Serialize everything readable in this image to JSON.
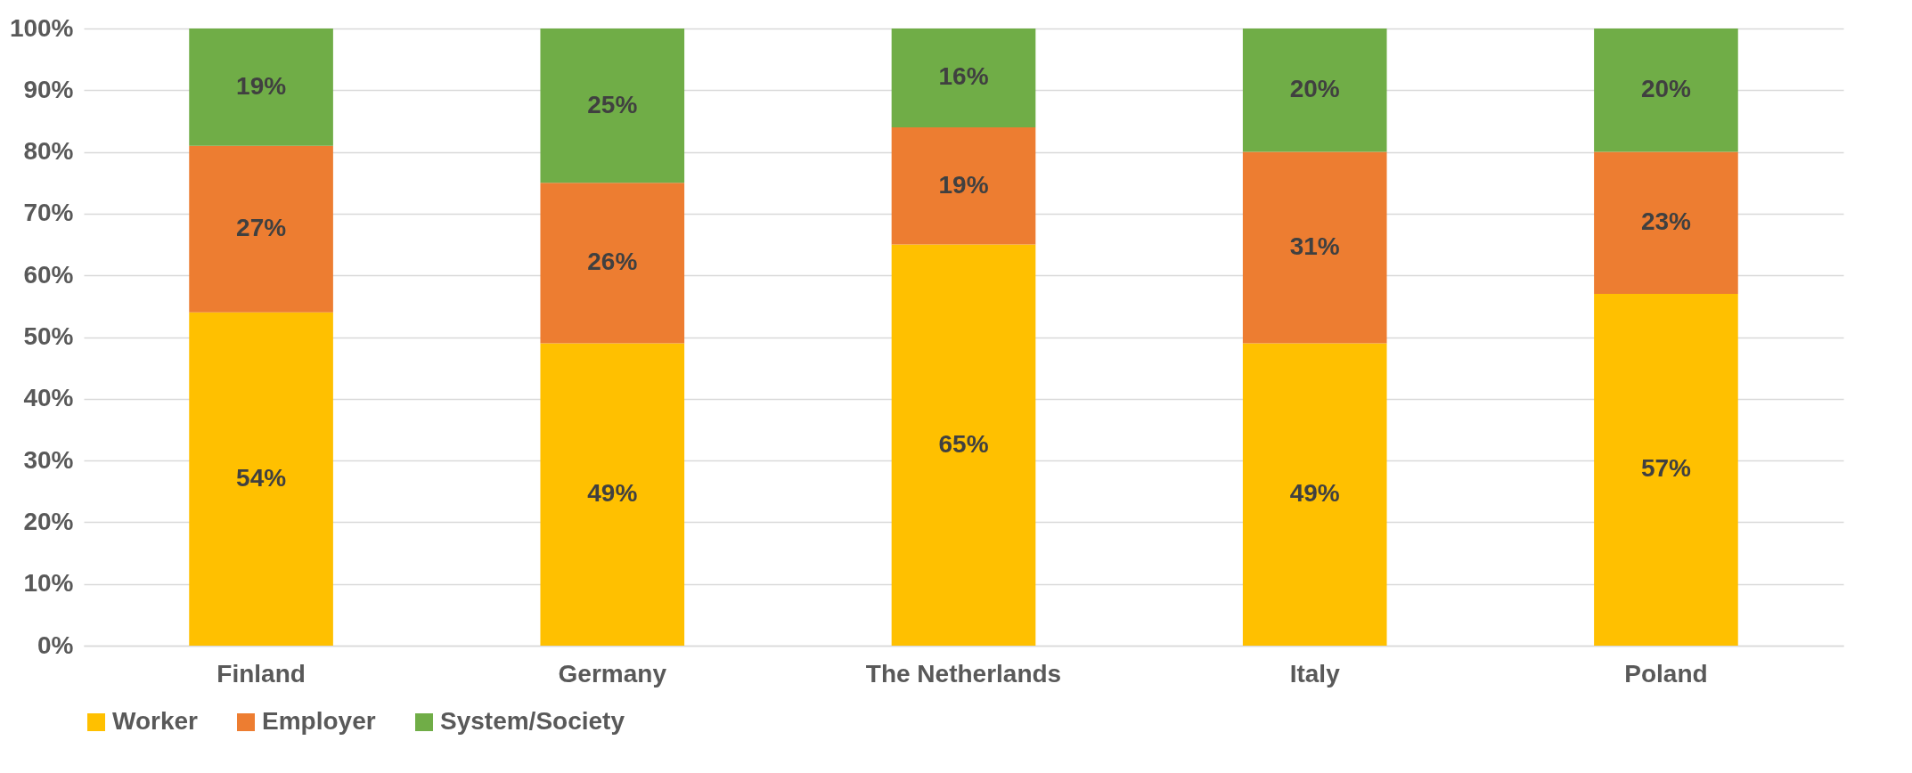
{
  "chart_data": {
    "type": "bar",
    "stacked": true,
    "categories": [
      "Finland",
      "Germany",
      "The Netherlands",
      "Italy",
      "Poland"
    ],
    "series": [
      {
        "name": "Worker",
        "color": "#ffc000",
        "values": [
          54,
          49,
          65,
          49,
          57
        ],
        "value_labels": [
          "54%",
          "49%",
          "65%",
          "49%",
          "57%"
        ]
      },
      {
        "name": "Employer",
        "color": "#ed7d31",
        "values": [
          27,
          26,
          19,
          31,
          23
        ],
        "value_labels": [
          "27%",
          "26%",
          "19%",
          "31%",
          "23%"
        ]
      },
      {
        "name": "System/Society",
        "color": "#70ad47",
        "values": [
          19,
          25,
          16,
          20,
          20
        ],
        "value_labels": [
          "19%",
          "25%",
          "16%",
          "20%",
          "20%"
        ]
      }
    ],
    "ylim": [
      0,
      100
    ],
    "yticks": [
      {
        "value": 0,
        "label": "0%"
      },
      {
        "value": 10,
        "label": "10%"
      },
      {
        "value": 20,
        "label": "20%"
      },
      {
        "value": 30,
        "label": "30%"
      },
      {
        "value": 40,
        "label": "40%"
      },
      {
        "value": 50,
        "label": "50%"
      },
      {
        "value": 60,
        "label": "60%"
      },
      {
        "value": 70,
        "label": "70%"
      },
      {
        "value": 80,
        "label": "80%"
      },
      {
        "value": 90,
        "label": "90%"
      },
      {
        "value": 100,
        "label": "100%"
      }
    ],
    "grid": "y",
    "legend": "bottom"
  }
}
